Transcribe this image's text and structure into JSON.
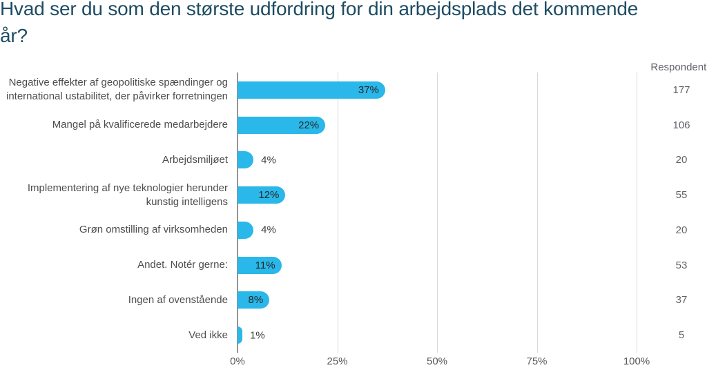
{
  "title": "Hvad ser du som den største udfordring for din arbejdsplads det kommende år?",
  "respondents_header": "Respondente",
  "colors": {
    "bar": "#29b8e9",
    "title_text": "#1d4c63",
    "category_text": "#4d4d4d",
    "axis_text": "#55585c",
    "grid_line": "#d8d8d8",
    "axis_line": "#939393"
  },
  "chart_data": {
    "type": "bar",
    "orientation": "horizontal",
    "title": "Hvad ser du som den største udfordring for din arbejdsplads det kommende år?",
    "xlabel": "",
    "ylabel": "",
    "xlim": [
      0,
      100
    ],
    "grid": "vertical",
    "legend": null,
    "x_ticks": [
      {
        "label": "0%",
        "value": 0
      },
      {
        "label": "25%",
        "value": 25
      },
      {
        "label": "50%",
        "value": 50
      },
      {
        "label": "75%",
        "value": 75
      },
      {
        "label": "100%",
        "value": 100
      }
    ],
    "categories": [
      "Negative effekter af geopolitiske spændinger og international ustabilitet, der påvirker forretningen",
      "Mangel på kvalificerede medarbejdere",
      "Arbejdsmiljøet",
      "Implementering af nye teknologier herunder kunstig intelligens",
      "Grøn omstilling af virksomheden",
      "Andet. Notér gerne:",
      "Ingen af ovenstående",
      "Ved ikke"
    ],
    "rows": [
      {
        "label_lines": [
          "Negative effekter af geopolitiske spændinger og",
          "international ustabilitet, der påvirker forretningen"
        ],
        "value": 37,
        "value_label": "37%",
        "respondents": "177"
      },
      {
        "label_lines": [
          "Mangel på kvalificerede medarbejdere"
        ],
        "value": 22,
        "value_label": "22%",
        "respondents": "106"
      },
      {
        "label_lines": [
          "Arbejdsmiljøet"
        ],
        "value": 4,
        "value_label": "4%",
        "respondents": "20"
      },
      {
        "label_lines": [
          "Implementering af nye teknologier herunder",
          "kunstig intelligens"
        ],
        "value": 12,
        "value_label": "12%",
        "respondents": "55"
      },
      {
        "label_lines": [
          "Grøn omstilling af virksomheden"
        ],
        "value": 4,
        "value_label": "4%",
        "respondents": "20"
      },
      {
        "label_lines": [
          "Andet. Notér gerne:"
        ],
        "value": 11,
        "value_label": "11%",
        "respondents": "53"
      },
      {
        "label_lines": [
          "Ingen af ovenstående"
        ],
        "value": 8,
        "value_label": "8%",
        "respondents": "37"
      },
      {
        "label_lines": [
          "Ved ikke"
        ],
        "value": 1,
        "value_label": "1%",
        "respondents": "5"
      }
    ],
    "values": [
      37,
      22,
      4,
      12,
      4,
      11,
      8,
      1
    ],
    "respondents": [
      177,
      106,
      20,
      55,
      20,
      53,
      37,
      5
    ]
  }
}
